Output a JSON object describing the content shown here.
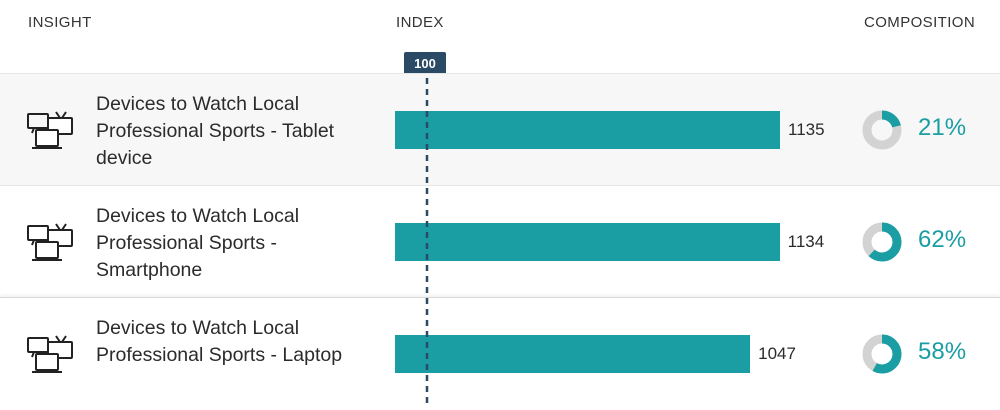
{
  "header": {
    "insight": "INSIGHT",
    "index": "INDEX",
    "composition": "COMPOSITION"
  },
  "baseline_label": "100",
  "colors": {
    "bar": "#1a9ea3",
    "donut_track": "#d3d3d3",
    "baseline_badge": "#2a4a66",
    "icon": "#222222"
  },
  "chart_data": {
    "type": "bar",
    "orientation": "horizontal",
    "title": "",
    "xlabel": "INDEX",
    "baseline": 100,
    "xlim": [
      0,
      1200
    ],
    "categories": [
      "Devices to Watch Local Professional Sports - Tablet device",
      "Devices to Watch Local Professional Sports - Smartphone",
      "Devices to Watch Local Professional Sports - Laptop"
    ],
    "values": [
      1135,
      1134,
      1047
    ],
    "composition_percent": [
      21,
      62,
      58
    ]
  },
  "rows": [
    {
      "icon": "multi-device-icon",
      "label": "Devices to Watch Local Professional Sports - Tablet device",
      "index": "1135",
      "composition": "21%",
      "composition_value": 21
    },
    {
      "icon": "multi-device-icon",
      "label": "Devices to Watch Local Professional Sports - Smartphone",
      "index": "1134",
      "composition": "62%",
      "composition_value": 62
    },
    {
      "icon": "multi-device-icon",
      "label": "Devices to Watch Local Professional Sports - Laptop",
      "index": "1047",
      "composition": "58%",
      "composition_value": 58
    }
  ]
}
